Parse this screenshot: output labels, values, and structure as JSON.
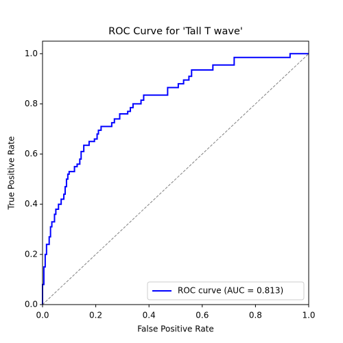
{
  "chart_data": {
    "type": "line",
    "title": "ROC Curve for 'Tall T wave'",
    "xlabel": "False Positive Rate",
    "ylabel": "True Positive Rate",
    "xlim": [
      0,
      1
    ],
    "ylim": [
      0,
      1.05
    ],
    "xticks": [
      {
        "value": 0,
        "label": "0.0"
      },
      0.2,
      0.4,
      0.6,
      0.8,
      {
        "value": 1,
        "label": "1.0"
      }
    ],
    "yticks": [
      {
        "value": 0,
        "label": "0.0"
      },
      0.2,
      0.4,
      0.6,
      0.8,
      {
        "value": 1,
        "label": "1.0"
      }
    ],
    "legend": "lower right",
    "series": [
      {
        "name": "ROC curve (AUC = 0.813)",
        "color": "#0000ff",
        "style": "solid",
        "x": [
          0,
          0,
          0.005,
          0.005,
          0.01,
          0.01,
          0.015,
          0.015,
          0.025,
          0.025,
          0.03,
          0.03,
          0.035,
          0.035,
          0.045,
          0.045,
          0.05,
          0.05,
          0.06,
          0.06,
          0.07,
          0.07,
          0.08,
          0.08,
          0.085,
          0.085,
          0.09,
          0.09,
          0.095,
          0.095,
          0.1,
          0.1,
          0.12,
          0.12,
          0.13,
          0.13,
          0.14,
          0.14,
          0.145,
          0.145,
          0.155,
          0.155,
          0.175,
          0.175,
          0.195,
          0.195,
          0.205,
          0.205,
          0.21,
          0.21,
          0.22,
          0.22,
          0.26,
          0.26,
          0.27,
          0.27,
          0.29,
          0.29,
          0.32,
          0.32,
          0.33,
          0.33,
          0.34,
          0.34,
          0.37,
          0.37,
          0.38,
          0.38,
          0.47,
          0.47,
          0.51,
          0.51,
          0.53,
          0.53,
          0.55,
          0.55,
          0.56,
          0.56,
          0.64,
          0.64,
          0.72,
          0.72,
          0.93,
          0.93,
          1.0
        ],
        "values": [
          0,
          0.08,
          0.08,
          0.15,
          0.15,
          0.2,
          0.2,
          0.24,
          0.24,
          0.27,
          0.27,
          0.31,
          0.31,
          0.33,
          0.33,
          0.36,
          0.36,
          0.38,
          0.38,
          0.4,
          0.4,
          0.42,
          0.42,
          0.44,
          0.44,
          0.47,
          0.47,
          0.5,
          0.5,
          0.52,
          0.52,
          0.53,
          0.53,
          0.55,
          0.55,
          0.56,
          0.56,
          0.58,
          0.58,
          0.61,
          0.61,
          0.635,
          0.635,
          0.65,
          0.65,
          0.66,
          0.66,
          0.68,
          0.68,
          0.695,
          0.695,
          0.71,
          0.71,
          0.725,
          0.725,
          0.74,
          0.74,
          0.76,
          0.76,
          0.77,
          0.77,
          0.785,
          0.785,
          0.8,
          0.8,
          0.815,
          0.815,
          0.835,
          0.835,
          0.865,
          0.865,
          0.88,
          0.88,
          0.895,
          0.895,
          0.91,
          0.91,
          0.935,
          0.935,
          0.955,
          0.955,
          0.985,
          0.985,
          1.0,
          1.0
        ]
      },
      {
        "color": "#808080",
        "style": "dashed",
        "x": [
          0,
          1
        ],
        "values": [
          0,
          1
        ]
      }
    ]
  }
}
